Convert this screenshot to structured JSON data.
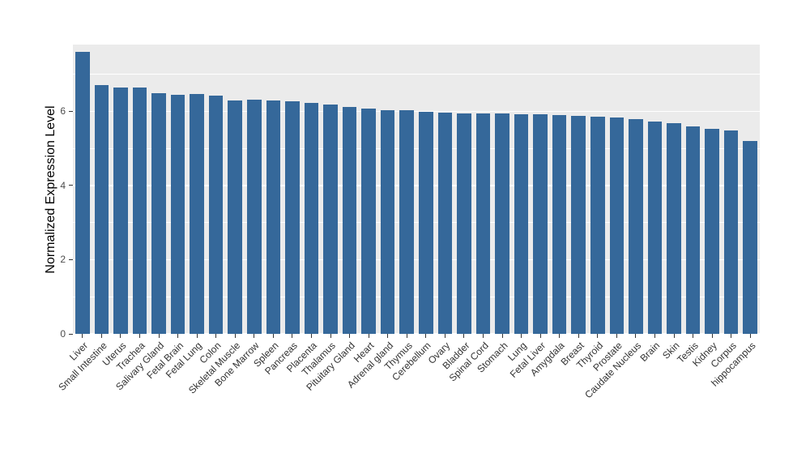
{
  "chart_data": {
    "type": "bar",
    "title": "",
    "xlabel": "",
    "ylabel": "Normalized Expression Level",
    "ylim": [
      0,
      7.8
    ],
    "yticks": [
      0,
      2,
      4,
      6
    ],
    "yticks_minor": [
      1,
      3,
      5,
      7
    ],
    "grid": true,
    "legend": false,
    "bar_color": "#35689A",
    "panel_bg": "#EBEBEB",
    "grid_color": "#FFFFFF",
    "categories": [
      "Liver",
      "Small Intestine",
      "Uterus",
      "Trachea",
      "Salivary Gland",
      "Fetal Brain",
      "Fetal Lung",
      "Colon",
      "Skeletal Muscle",
      "Bone Marrow",
      "Spleen",
      "Pancreas",
      "Placenta",
      "Thalamus",
      "Pituitary Gland",
      "Heart",
      "Adrenal gland",
      "Thymus",
      "Cerebellum",
      "Ovary",
      "Bladder",
      "Spinal Cord",
      "Stomach",
      "Lung",
      "Fetal Liver",
      "Amygdala",
      "Breast",
      "Thyroid",
      "Prostate",
      "Caudate Nucleus",
      "Brain",
      "Skin",
      "Testis",
      "Kidney",
      "Corpus",
      "hippocampus"
    ],
    "values": [
      7.6,
      6.7,
      6.65,
      6.65,
      6.5,
      6.45,
      6.47,
      6.43,
      6.3,
      6.32,
      6.3,
      6.27,
      6.22,
      6.18,
      6.12,
      6.08,
      6.04,
      6.02,
      5.98,
      5.97,
      5.95,
      5.95,
      5.95,
      5.93,
      5.92,
      5.9,
      5.87,
      5.85,
      5.83,
      5.78,
      5.73,
      5.68,
      5.6,
      5.52,
      5.48,
      5.2
    ]
  }
}
